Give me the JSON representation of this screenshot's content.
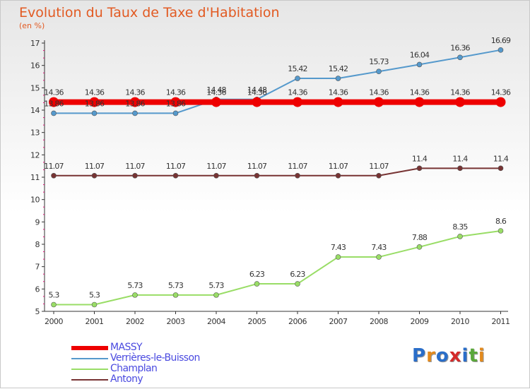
{
  "header": {
    "title": "Evolution du Taux de Taxe d'Habitation",
    "subtitle": "(en %)"
  },
  "chart_data": {
    "type": "line",
    "title": "Evolution du Taux de Taxe d'Habitation",
    "ylabel": "(en %)",
    "xlabel": "",
    "x": [
      "2000",
      "2001",
      "2002",
      "2003",
      "2004",
      "2005",
      "2006",
      "2007",
      "2008",
      "2009",
      "2010",
      "2011"
    ],
    "ylim": [
      5,
      17
    ],
    "yticks": [
      5,
      6,
      7,
      8,
      9,
      10,
      11,
      12,
      13,
      14,
      15,
      16,
      17
    ],
    "grid": false,
    "legend_position": "bottom-left",
    "series": [
      {
        "name": "MASSY",
        "color": "#ee0000",
        "values": [
          14.36,
          14.36,
          14.36,
          14.36,
          14.36,
          14.36,
          14.36,
          14.36,
          14.36,
          14.36,
          14.36,
          14.36
        ],
        "labels": [
          "14.36",
          "14.36",
          "14.36",
          "14.36",
          "14.36",
          "14.36",
          "14.36",
          "14.36",
          "14.36",
          "14.36",
          "14.36",
          "14.36"
        ]
      },
      {
        "name": "Verrières-le-Buisson",
        "color": "#5599cc",
        "values": [
          13.86,
          13.86,
          13.86,
          13.86,
          14.48,
          14.48,
          15.42,
          15.42,
          15.73,
          16.04,
          16.36,
          16.69
        ],
        "labels": [
          "13.86",
          "13.86",
          "13.86",
          "13.86",
          "14.48",
          "14.48",
          "15.42",
          "15.42",
          "15.73",
          "16.04",
          "16.36",
          "16.69"
        ]
      },
      {
        "name": "Champlan",
        "color": "#99dd66",
        "values": [
          5.3,
          5.3,
          5.73,
          5.73,
          5.73,
          6.23,
          6.23,
          7.43,
          7.43,
          7.88,
          8.35,
          8.6
        ],
        "labels": [
          "5.3",
          "5.3",
          "5.73",
          "5.73",
          "5.73",
          "6.23",
          "6.23",
          "7.43",
          "7.43",
          "7.88",
          "8.35",
          "8.6"
        ]
      },
      {
        "name": "Antony",
        "color": "#773333",
        "values": [
          11.07,
          11.07,
          11.07,
          11.07,
          11.07,
          11.07,
          11.07,
          11.07,
          11.07,
          11.4,
          11.4,
          11.4
        ],
        "labels": [
          "11.07",
          "11.07",
          "11.07",
          "11.07",
          "11.07",
          "11.07",
          "11.07",
          "11.07",
          "11.07",
          "11.4",
          "11.4",
          "11.4"
        ]
      }
    ]
  },
  "legend": {
    "items": [
      {
        "label": "MASSY",
        "color": "#ee0000"
      },
      {
        "label": "Verrières-le-Buisson",
        "color": "#5599cc"
      },
      {
        "label": "Champlan",
        "color": "#99dd66"
      },
      {
        "label": "Antony",
        "color": "#773333"
      }
    ]
  },
  "logo": {
    "text": "Proxiti",
    "letters": [
      "P",
      "r",
      "o",
      "x",
      "i",
      "t",
      "i"
    ],
    "colors": [
      "#2a6ec9",
      "#e38a1d",
      "#2a6ec9",
      "#d42a2a",
      "#2a6ec9",
      "#5aa83a",
      "#e38a1d"
    ]
  }
}
